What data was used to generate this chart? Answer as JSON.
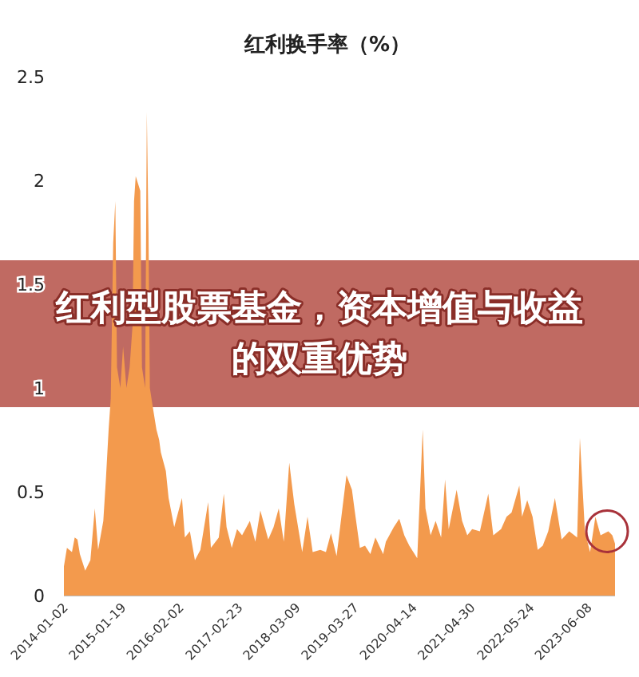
{
  "chart_data": {
    "type": "area",
    "title": "红利换手率（%）",
    "annotations": [
      "红利型股票基金，资本增值与收益的双重优势"
    ],
    "x": [
      "2014-01-02",
      "2014-01-22",
      "2014-02-24",
      "2014-03-14",
      "2014-04-01",
      "2014-04-17",
      "2014-05-22",
      "2014-06-25",
      "2014-07-24",
      "2014-08-15",
      "2014-09-18",
      "2014-10-05",
      "2014-10-23",
      "2014-11-06",
      "2014-11-22",
      "2014-12-06",
      "2014-12-17",
      "2015-01-08",
      "2015-01-26",
      "2015-02-17",
      "2015-03-10",
      "2015-03-29",
      "2015-04-08",
      "2015-04-19",
      "2015-05-19",
      "2015-05-30",
      "2015-06-20",
      "2015-07-01",
      "2015-07-12",
      "2015-07-21",
      "2015-08-11",
      "2015-09-02",
      "2015-09-20",
      "2015-10-01",
      "2015-11-03",
      "2015-11-21",
      "2015-12-28",
      "2016-02-17",
      "2016-03-07",
      "2016-04-09",
      "2016-05-12",
      "2016-06-17",
      "2016-08-07",
      "2016-08-25",
      "2016-10-16",
      "2016-11-18",
      "2016-12-06",
      "2017-01-09",
      "2017-02-13",
      "2017-03-18",
      "2017-05-08",
      "2017-06-13",
      "2017-07-16",
      "2017-09-06",
      "2017-10-11",
      "2017-11-14",
      "2017-12-17",
      "2018-01-22",
      "2018-02-24",
      "2018-04-17",
      "2018-05-22",
      "2018-06-25",
      "2018-08-14",
      "2018-09-20",
      "2018-10-23",
      "2018-11-29",
      "2019-02-02",
      "2019-03-10",
      "2019-03-28",
      "2019-05-01",
      "2019-06-04",
      "2019-07-09",
      "2019-08-11",
      "2019-10-01",
      "2019-10-19",
      "2019-12-10",
      "2020-01-15",
      "2020-02-17",
      "2020-03-21",
      "2020-05-12",
      "2020-06-17",
      "2020-07-05",
      "2020-08-08",
      "2020-09-10",
      "2020-10-16",
      "2020-11-11",
      "2020-12-05",
      "2021-01-26",
      "2021-03-03",
      "2021-04-06",
      "2021-05-08",
      "2021-06-28",
      "2021-08-22",
      "2021-09-24",
      "2021-11-14",
      "2021-12-20",
      "2022-01-22",
      "2022-03-14",
      "2022-04-01",
      "2022-05-05",
      "2022-06-09",
      "2022-07-13",
      "2022-08-15",
      "2022-09-20",
      "2022-11-03",
      "2022-12-17",
      "2023-02-05",
      "2023-03-29",
      "2023-04-16",
      "2023-05-19",
      "2023-06-22",
      "2023-07-27",
      "2023-08-30",
      "2023-10-20",
      "2023-11-15",
      "2023-12-03"
    ],
    "series": [
      {
        "color": "#f39a4d",
        "values": [
          0.14,
          0.23,
          0.21,
          0.28,
          0.27,
          0.2,
          0.12,
          0.17,
          0.42,
          0.22,
          0.36,
          0.56,
          0.8,
          0.95,
          1.7,
          1.9,
          1.1,
          1.0,
          1.2,
          1.0,
          1.1,
          1.3,
          1.9,
          2.02,
          1.95,
          1.1,
          1.0,
          2.33,
          1.75,
          1.0,
          0.9,
          0.8,
          0.75,
          0.69,
          0.6,
          0.47,
          0.33,
          0.47,
          0.28,
          0.31,
          0.17,
          0.22,
          0.45,
          0.23,
          0.28,
          0.49,
          0.33,
          0.23,
          0.32,
          0.29,
          0.36,
          0.26,
          0.41,
          0.27,
          0.33,
          0.42,
          0.26,
          0.64,
          0.44,
          0.21,
          0.38,
          0.21,
          0.22,
          0.21,
          0.3,
          0.19,
          0.58,
          0.51,
          0.41,
          0.23,
          0.24,
          0.2,
          0.28,
          0.2,
          0.26,
          0.33,
          0.37,
          0.29,
          0.24,
          0.18,
          0.8,
          0.42,
          0.29,
          0.36,
          0.28,
          0.56,
          0.32,
          0.51,
          0.36,
          0.29,
          0.32,
          0.31,
          0.49,
          0.29,
          0.32,
          0.38,
          0.4,
          0.53,
          0.38,
          0.46,
          0.38,
          0.22,
          0.24,
          0.31,
          0.47,
          0.27,
          0.31,
          0.28,
          0.76,
          0.31,
          0.21,
          0.38,
          0.29,
          0.31,
          0.29,
          0.25
        ]
      }
    ],
    "xlim": [
      "2014-01-02",
      "2023-12-03"
    ],
    "xticks": [
      {
        "value": "2014-01-02",
        "label": "2014-01-02"
      },
      {
        "value": "2015-01-19",
        "label": "2015-01-19"
      },
      {
        "value": "2016-02-02",
        "label": "2016-02-02"
      },
      {
        "value": "2017-02-23",
        "label": "2017-02-23"
      },
      {
        "value": "2018-03-09",
        "label": "2018-03-09"
      },
      {
        "value": "2019-03-27",
        "label": "2019-03-27"
      },
      {
        "value": "2020-04-14",
        "label": "2020-04-14"
      },
      {
        "value": "2021-04-30",
        "label": "2021-04-30"
      },
      {
        "value": "2022-05-24",
        "label": "2022-05-24"
      },
      {
        "value": "2023-06-08",
        "label": "2023-06-08"
      }
    ],
    "ylim": [
      0,
      2.5
    ],
    "yticks": [
      0,
      0.5,
      1,
      1.5,
      2,
      2.5
    ],
    "grid": false
  }
}
